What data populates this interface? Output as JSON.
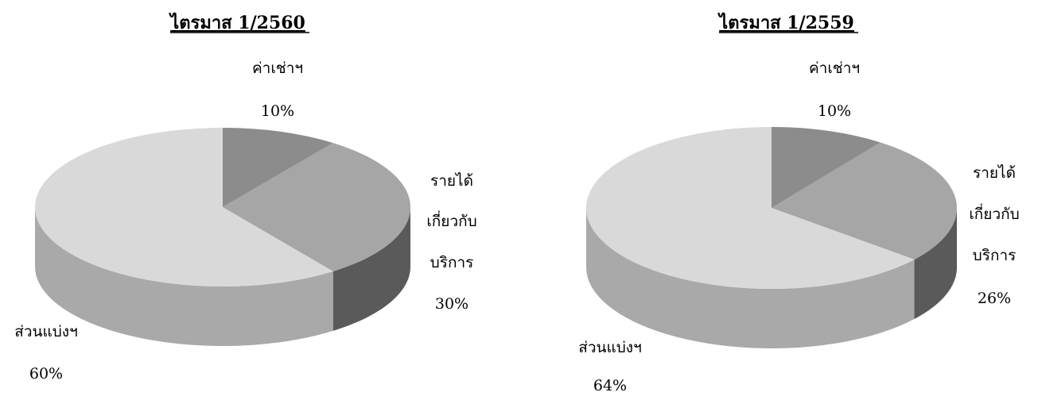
{
  "chart_data": [
    {
      "type": "pie",
      "title": "ไตรมาส 1/2560",
      "slices": [
        {
          "label": "ค่าเช่าฯ",
          "label_lines": [
            "ค่าเช่าฯ"
          ],
          "value": 10,
          "value_text": "10%",
          "color": "#8c8c8c"
        },
        {
          "label": "รายได้เกี่ยวกับบริการ",
          "label_lines": [
            "รายได้",
            "เกี่ยวกับ",
            "บริการ"
          ],
          "value": 30,
          "value_text": "30%",
          "color": "#a6a6a6"
        },
        {
          "label": "ส่วนแบ่งฯ",
          "label_lines": [
            "ส่วนแบ่งฯ"
          ],
          "value": 60,
          "value_text": "60%",
          "color": "#d9d9d9"
        }
      ]
    },
    {
      "type": "pie",
      "title": "ไตรมาส 1/2559",
      "slices": [
        {
          "label": "ค่าเช่าฯ",
          "label_lines": [
            "ค่าเช่าฯ"
          ],
          "value": 10,
          "value_text": "10%",
          "color": "#8c8c8c"
        },
        {
          "label": "รายได้เกี่ยวกับบริการ",
          "label_lines": [
            "รายได้",
            "เกี่ยวกับ",
            "บริการ"
          ],
          "value": 26,
          "value_text": "26%",
          "color": "#a6a6a6"
        },
        {
          "label": "ส่วนแบ่งฯ",
          "label_lines": [
            "ส่วนแบ่งฯ"
          ],
          "value": 64,
          "value_text": "64%",
          "color": "#d9d9d9"
        }
      ]
    }
  ]
}
